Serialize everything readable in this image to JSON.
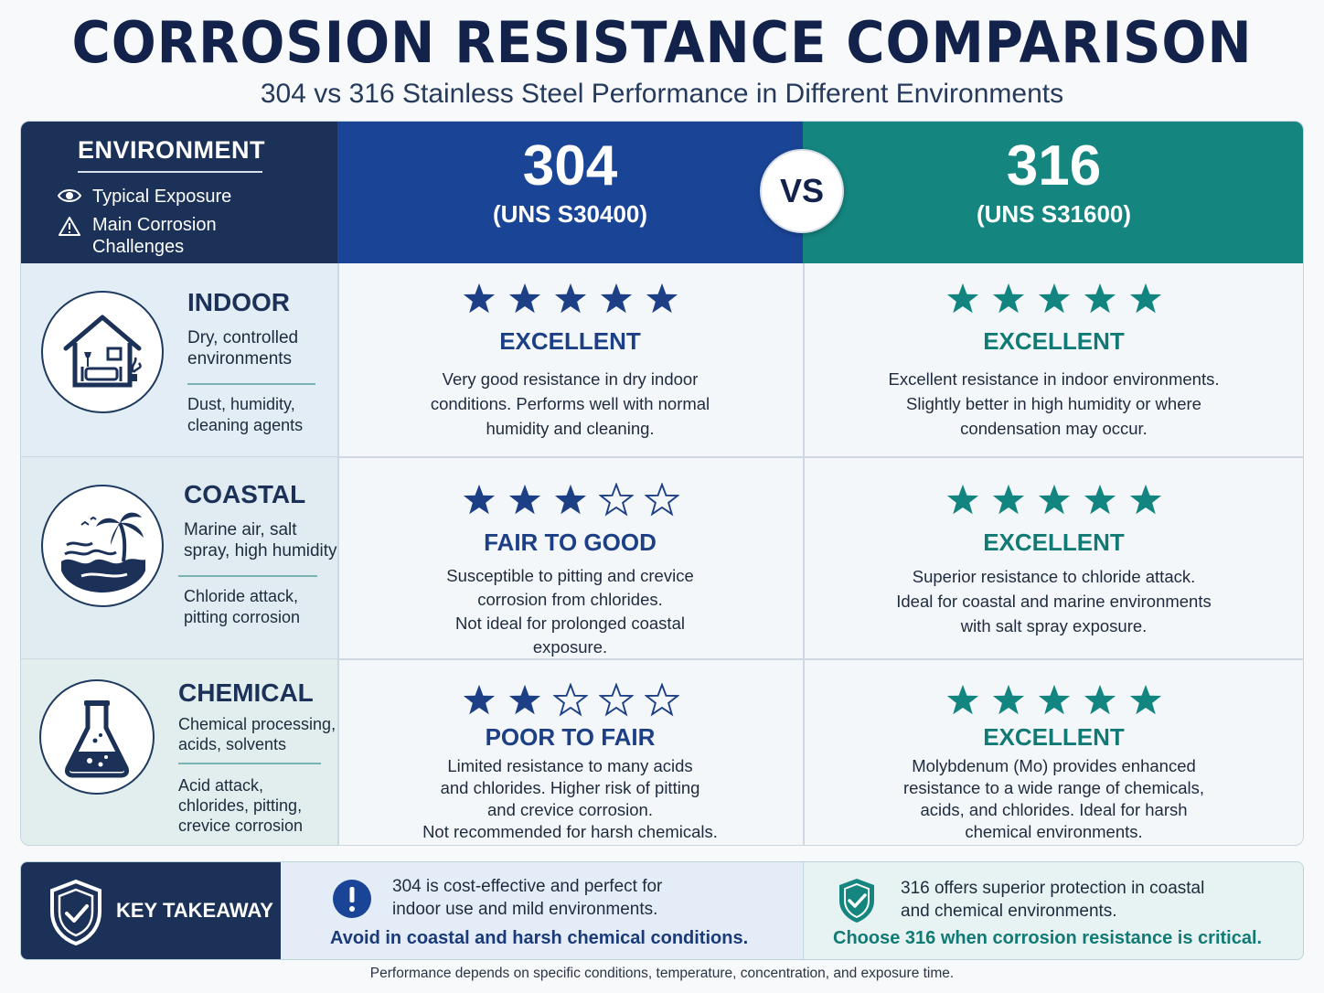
{
  "title": "CORROSION RESISTANCE COMPARISON",
  "subtitle": "304 vs 316 Stainless Steel Performance in Different Environments",
  "colors": {
    "navy": "#1b3157",
    "blue_304": "#1a4597",
    "teal_316": "#14857f",
    "star_304": "#1c3f86",
    "star_316": "#138580"
  },
  "header": {
    "environment_label": "ENVIRONMENT",
    "legend": [
      {
        "icon": "eye-icon",
        "label": "Typical Exposure"
      },
      {
        "icon": "warning-icon",
        "label_line1": "Main Corrosion",
        "label_line2": "Challenges"
      }
    ],
    "grade_304": {
      "number": "304",
      "uns": "(UNS S30400)"
    },
    "vs": "VS",
    "grade_316": {
      "number": "316",
      "uns": "(UNS S31600)"
    }
  },
  "rows": [
    {
      "name": "INDOOR",
      "icon": "house-icon",
      "typical": [
        "Dry, controlled",
        "environments"
      ],
      "challenges": [
        "Dust, humidity,",
        "cleaning agents"
      ],
      "r304": {
        "stars": 5,
        "rating": "EXCELLENT",
        "desc": [
          "Very good resistance in dry indoor",
          "conditions. Performs well with normal",
          "humidity and cleaning."
        ]
      },
      "r316": {
        "stars": 5,
        "rating": "EXCELLENT",
        "desc": [
          "Excellent resistance in indoor environments.",
          "Slightly better in high humidity or where",
          "condensation may occur."
        ]
      }
    },
    {
      "name": "COASTAL",
      "icon": "palm-beach-icon",
      "typical": [
        "Marine air, salt",
        "spray, high humidity"
      ],
      "challenges": [
        "Chloride attack,",
        "pitting corrosion"
      ],
      "r304": {
        "stars": 3,
        "rating": "FAIR TO GOOD",
        "desc": [
          "Susceptible to pitting and crevice",
          "corrosion from chlorides.",
          "Not ideal for prolonged coastal",
          "exposure."
        ]
      },
      "r316": {
        "stars": 5,
        "rating": "EXCELLENT",
        "desc": [
          "Superior resistance to chloride attack.",
          "Ideal for coastal and marine environments",
          "with salt spray exposure."
        ]
      }
    },
    {
      "name": "CHEMICAL",
      "icon": "flask-icon",
      "typical": [
        "Chemical processing,",
        "acids, solvents"
      ],
      "challenges": [
        "Acid attack,",
        "chlorides, pitting,",
        "crevice corrosion"
      ],
      "r304": {
        "stars": 2,
        "rating": "POOR TO FAIR",
        "desc": [
          "Limited resistance to many acids",
          "and chlorides. Higher risk of pitting",
          "and crevice corrosion.",
          "Not recommended for harsh chemicals."
        ]
      },
      "r316": {
        "stars": 5,
        "rating": "EXCELLENT",
        "desc": [
          "Molybdenum (Mo) provides enhanced",
          "resistance to a wide range of chemicals,",
          "acids, and chlorides. Ideal for harsh",
          "chemical environments."
        ]
      }
    }
  ],
  "takeaway": {
    "label": "KEY TAKEAWAY",
    "left_text": [
      "304 is cost-effective and perfect for",
      "indoor use and mild environments."
    ],
    "left_strong": "Avoid in coastal and harsh chemical conditions.",
    "right_text": [
      "316 offers superior protection in coastal",
      "and chemical environments."
    ],
    "right_strong": "Choose 316 when corrosion resistance is critical."
  },
  "footnote": "Performance depends on specific conditions, temperature, concentration, and exposure time."
}
